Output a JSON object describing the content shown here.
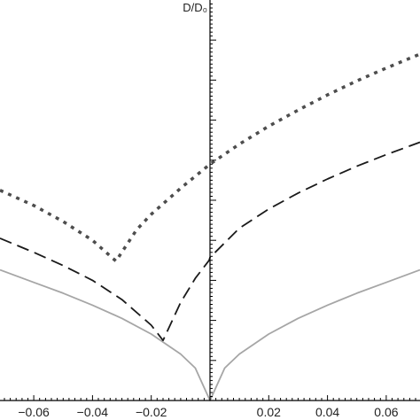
{
  "chart_data": {
    "type": "line",
    "ylabel": "D/D₀",
    "xlabel": "",
    "xlim": [
      -0.0715,
      0.0715
    ],
    "ylim": [
      0,
      1
    ],
    "x_ticks": [
      -0.06,
      -0.04,
      -0.02,
      0.02,
      0.04,
      0.06
    ],
    "x_tick_labels": [
      "−0.06",
      "−0.04",
      "−0.02",
      "0.02",
      "0.04",
      "0.06"
    ],
    "y_ticks_labeled": false,
    "grid": false,
    "legend": "none",
    "series": [
      {
        "line_style": "solid",
        "color": "#a6a6a6",
        "x": [
          -0.0715,
          -0.06,
          -0.05,
          -0.04,
          -0.03,
          -0.02,
          -0.01,
          -0.005,
          0,
          0.005,
          0.01,
          0.02,
          0.03,
          0.04,
          0.05,
          0.06,
          0.0715
        ],
        "y": [
          0.326,
          0.295,
          0.268,
          0.238,
          0.205,
          0.166,
          0.116,
          0.081,
          0.0,
          0.081,
          0.116,
          0.166,
          0.205,
          0.238,
          0.268,
          0.295,
          0.326
        ]
      },
      {
        "line_style": "dashed",
        "color": "#1a1a1a",
        "x": [
          -0.0715,
          -0.06,
          -0.05,
          -0.04,
          -0.03,
          -0.02,
          -0.016,
          -0.01,
          -0.005,
          -0.0003,
          0.0,
          0.01,
          0.02,
          0.03,
          0.04,
          0.05,
          0.06,
          0.0715
        ],
        "y": [
          0.405,
          0.37,
          0.337,
          0.3,
          0.252,
          0.188,
          0.15,
          0.245,
          0.305,
          0.35,
          0.357,
          0.43,
          0.478,
          0.518,
          0.553,
          0.585,
          0.614,
          0.645
        ]
      },
      {
        "line_style": "dotted",
        "color": "#4d4d4d",
        "x": [
          -0.0715,
          -0.06,
          -0.05,
          -0.04,
          -0.032,
          -0.025,
          -0.02,
          -0.01,
          0.0,
          0.01,
          0.02,
          0.03,
          0.04,
          0.05,
          0.06,
          0.0715
        ],
        "y": [
          0.525,
          0.487,
          0.447,
          0.4,
          0.348,
          0.426,
          0.465,
          0.53,
          0.59,
          0.64,
          0.685,
          0.725,
          0.763,
          0.798,
          0.83,
          0.865
        ]
      }
    ]
  }
}
